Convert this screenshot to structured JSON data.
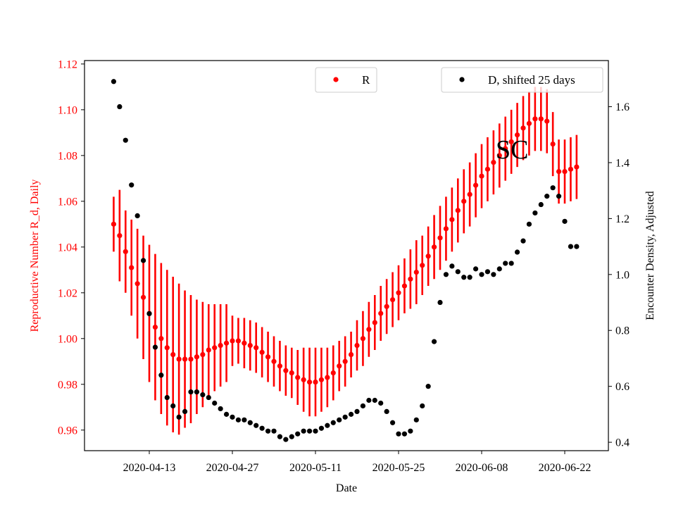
{
  "chart_data": {
    "type": "scatter",
    "xlabel": "Date",
    "ylabel_left": "Reproductive Number R_d, Daily",
    "ylabel_right": "Encounter Density, Adjusted",
    "annotation": "SC",
    "x_ticks": [
      "2020-04-13",
      "2020-04-27",
      "2020-05-11",
      "2020-05-25",
      "2020-06-08",
      "2020-06-22"
    ],
    "y_left_ticks": [
      "0.96",
      "0.98",
      "1.00",
      "1.02",
      "1.04",
      "1.06",
      "1.08",
      "1.10",
      "1.12"
    ],
    "y_right_ticks": [
      "0.4",
      "0.6",
      "0.8",
      "1.0",
      "1.2",
      "1.4",
      "1.6"
    ],
    "ylim_left": [
      0.951,
      1.1215
    ],
    "ylim_right": [
      0.37,
      1.765
    ],
    "legend": [
      {
        "label": "R",
        "color": "#ff0000",
        "placement": "top-center"
      },
      {
        "label": "D, shifted 25 days",
        "color": "#000000",
        "placement": "top-right"
      }
    ],
    "colors": {
      "R": "#ff0000",
      "D": "#000000"
    },
    "series": [
      {
        "name": "R",
        "x": [
          "2020-04-07",
          "2020-04-08",
          "2020-04-09",
          "2020-04-10",
          "2020-04-11",
          "2020-04-12",
          "2020-04-13",
          "2020-04-14",
          "2020-04-15",
          "2020-04-16",
          "2020-04-17",
          "2020-04-18",
          "2020-04-19",
          "2020-04-20",
          "2020-04-21",
          "2020-04-22",
          "2020-04-23",
          "2020-04-24",
          "2020-04-25",
          "2020-04-26",
          "2020-04-27",
          "2020-04-28",
          "2020-04-29",
          "2020-04-30",
          "2020-05-01",
          "2020-05-02",
          "2020-05-03",
          "2020-05-04",
          "2020-05-05",
          "2020-05-06",
          "2020-05-07",
          "2020-05-08",
          "2020-05-09",
          "2020-05-10",
          "2020-05-11",
          "2020-05-12",
          "2020-05-13",
          "2020-05-14",
          "2020-05-15",
          "2020-05-16",
          "2020-05-17",
          "2020-05-18",
          "2020-05-19",
          "2020-05-20",
          "2020-05-21",
          "2020-05-22",
          "2020-05-23",
          "2020-05-24",
          "2020-05-25",
          "2020-05-26",
          "2020-05-27",
          "2020-05-28",
          "2020-05-29",
          "2020-05-30",
          "2020-05-31",
          "2020-06-01",
          "2020-06-02",
          "2020-06-03",
          "2020-06-04",
          "2020-06-05",
          "2020-06-06",
          "2020-06-07",
          "2020-06-08",
          "2020-06-09",
          "2020-06-10",
          "2020-06-11",
          "2020-06-12",
          "2020-06-13",
          "2020-06-14",
          "2020-06-15",
          "2020-06-16",
          "2020-06-17",
          "2020-06-18",
          "2020-06-19",
          "2020-06-20",
          "2020-06-21",
          "2020-06-22",
          "2020-06-23",
          "2020-06-24"
        ],
        "y": [
          1.05,
          1.045,
          1.038,
          1.031,
          1.024,
          1.018,
          1.011,
          1.005,
          1.0,
          0.996,
          0.993,
          0.991,
          0.991,
          0.991,
          0.992,
          0.993,
          0.995,
          0.996,
          0.997,
          0.998,
          0.999,
          0.999,
          0.998,
          0.997,
          0.996,
          0.994,
          0.992,
          0.99,
          0.988,
          0.986,
          0.985,
          0.983,
          0.982,
          0.981,
          0.981,
          0.982,
          0.983,
          0.985,
          0.988,
          0.99,
          0.993,
          0.997,
          1.0,
          1.004,
          1.007,
          1.011,
          1.014,
          1.017,
          1.02,
          1.023,
          1.026,
          1.029,
          1.032,
          1.036,
          1.04,
          1.044,
          1.048,
          1.052,
          1.056,
          1.06,
          1.063,
          1.067,
          1.071,
          1.074,
          1.077,
          1.08,
          1.083,
          1.086,
          1.089,
          1.092,
          1.094,
          1.096,
          1.096,
          1.095,
          1.085,
          1.073,
          1.073,
          1.074,
          1.075
        ],
        "err": [
          0.012,
          0.02,
          0.018,
          0.021,
          0.024,
          0.027,
          0.03,
          0.032,
          0.033,
          0.034,
          0.034,
          0.033,
          0.03,
          0.028,
          0.025,
          0.023,
          0.02,
          0.019,
          0.018,
          0.017,
          0.011,
          0.01,
          0.011,
          0.011,
          0.011,
          0.011,
          0.011,
          0.011,
          0.011,
          0.011,
          0.011,
          0.012,
          0.014,
          0.015,
          0.015,
          0.014,
          0.013,
          0.012,
          0.011,
          0.011,
          0.01,
          0.011,
          0.012,
          0.012,
          0.012,
          0.012,
          0.012,
          0.012,
          0.012,
          0.012,
          0.013,
          0.014,
          0.013,
          0.013,
          0.014,
          0.014,
          0.014,
          0.014,
          0.014,
          0.014,
          0.014,
          0.014,
          0.014,
          0.014,
          0.014,
          0.014,
          0.014,
          0.014,
          0.014,
          0.014,
          0.014,
          0.014,
          0.014,
          0.014,
          0.014,
          0.014,
          0.014,
          0.014,
          0.014
        ]
      },
      {
        "name": "D, shifted 25 days",
        "x": [
          "2020-04-07",
          "2020-04-08",
          "2020-04-09",
          "2020-04-10",
          "2020-04-11",
          "2020-04-12",
          "2020-04-13",
          "2020-04-14",
          "2020-04-15",
          "2020-04-16",
          "2020-04-17",
          "2020-04-18",
          "2020-04-19",
          "2020-04-20",
          "2020-04-21",
          "2020-04-22",
          "2020-04-23",
          "2020-04-24",
          "2020-04-25",
          "2020-04-26",
          "2020-04-27",
          "2020-04-28",
          "2020-04-29",
          "2020-04-30",
          "2020-05-01",
          "2020-05-02",
          "2020-05-03",
          "2020-05-04",
          "2020-05-05",
          "2020-05-06",
          "2020-05-07",
          "2020-05-08",
          "2020-05-09",
          "2020-05-10",
          "2020-05-11",
          "2020-05-12",
          "2020-05-13",
          "2020-05-14",
          "2020-05-15",
          "2020-05-16",
          "2020-05-17",
          "2020-05-18",
          "2020-05-19",
          "2020-05-20",
          "2020-05-21",
          "2020-05-22",
          "2020-05-23",
          "2020-05-24",
          "2020-05-25",
          "2020-05-26",
          "2020-05-27",
          "2020-05-28",
          "2020-05-29",
          "2020-05-30",
          "2020-05-31",
          "2020-06-01",
          "2020-06-02",
          "2020-06-03",
          "2020-06-04",
          "2020-06-05",
          "2020-06-06",
          "2020-06-07",
          "2020-06-08",
          "2020-06-09",
          "2020-06-10",
          "2020-06-11",
          "2020-06-12",
          "2020-06-13",
          "2020-06-14",
          "2020-06-15",
          "2020-06-16",
          "2020-06-17",
          "2020-06-18",
          "2020-06-19",
          "2020-06-20",
          "2020-06-21",
          "2020-06-22",
          "2020-06-23",
          "2020-06-24"
        ],
        "y": [
          1.69,
          1.6,
          1.48,
          1.32,
          1.21,
          1.05,
          0.86,
          0.74,
          0.64,
          0.56,
          0.53,
          0.49,
          0.51,
          0.58,
          0.58,
          0.57,
          0.56,
          0.54,
          0.52,
          0.5,
          0.49,
          0.48,
          0.48,
          0.47,
          0.46,
          0.45,
          0.44,
          0.44,
          0.42,
          0.41,
          0.42,
          0.43,
          0.44,
          0.44,
          0.44,
          0.45,
          0.46,
          0.47,
          0.48,
          0.49,
          0.5,
          0.51,
          0.53,
          0.55,
          0.55,
          0.54,
          0.51,
          0.47,
          0.43,
          0.43,
          0.44,
          0.48,
          0.53,
          0.6,
          0.76,
          0.9,
          1.0,
          1.03,
          1.01,
          0.99,
          0.99,
          1.02,
          1.0,
          1.01,
          1.0,
          1.02,
          1.04,
          1.04,
          1.08,
          1.12,
          1.18,
          1.22,
          1.25,
          1.28,
          1.31,
          1.28,
          1.19,
          1.1,
          1.1
        ]
      }
    ]
  }
}
